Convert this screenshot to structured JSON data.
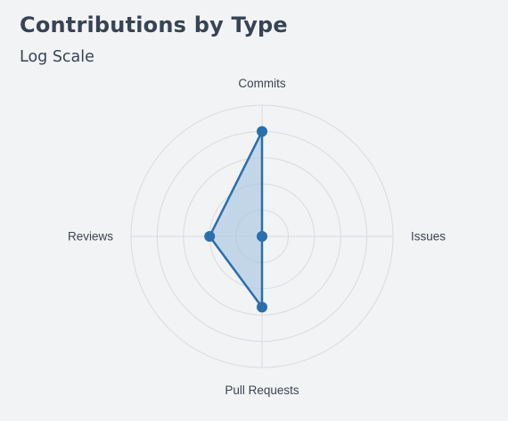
{
  "header": {
    "title": "Contributions by Type",
    "subtitle": "Log Scale"
  },
  "colors": {
    "background": "#f2f3f5",
    "grid": "#d8dbe0",
    "series_stroke": "#2a6fad",
    "series_fill": "#a9c6e1",
    "point": "#2a6fad",
    "title_text": "#384354",
    "label_text": "#3e4450"
  },
  "chart_data": {
    "type": "radar",
    "scale": "log",
    "grid": true,
    "legend": "none",
    "axes": [
      "Commits",
      "Issues",
      "Pull Requests",
      "Reviews"
    ],
    "rlim": [
      1,
      100000
    ],
    "series": [
      {
        "values": [
          10000,
          1,
          500,
          100
        ]
      }
    ]
  }
}
